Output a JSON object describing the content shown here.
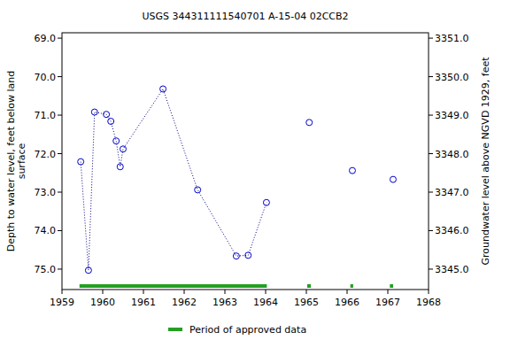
{
  "chart_data": {
    "type": "scatter",
    "title": "USGS 344311111540701 A-15-04 02CCB2",
    "y_label": [
      "Depth to water level, feet below land",
      "surface"
    ],
    "y2_label": "Groundwater level above NGVD 1929, feet",
    "xlim": [
      1959,
      1968
    ],
    "xticks": [
      1959,
      1960,
      1961,
      1962,
      1963,
      1964,
      1965,
      1966,
      1967,
      1968
    ],
    "ylim": [
      68.86,
      75.53
    ],
    "yticks": [
      {
        "value": 69,
        "label": "69.0"
      },
      {
        "value": 70,
        "label": "70.0"
      },
      {
        "value": 71,
        "label": "71.0"
      },
      {
        "value": 72,
        "label": "72.0"
      },
      {
        "value": 73,
        "label": "73.0"
      },
      {
        "value": 74,
        "label": "74.0"
      },
      {
        "value": 75,
        "label": "75.0"
      }
    ],
    "y2lim": [
      3351.14,
      3344.47
    ],
    "y2ticks": [
      {
        "value": 3351,
        "label": "3351.0"
      },
      {
        "value": 3350,
        "label": "3350.0"
      },
      {
        "value": 3349,
        "label": "3349.0"
      },
      {
        "value": 3348,
        "label": "3348.0"
      },
      {
        "value": 3347,
        "label": "3347.0"
      },
      {
        "value": 3346,
        "label": "3346.0"
      },
      {
        "value": 3345,
        "label": "3345.0"
      }
    ],
    "grid": false,
    "series": [
      {
        "color": "#0000cc",
        "marker": "circle",
        "line_style": "dotted",
        "x": [
          1959.46,
          1959.65,
          1959.8,
          1960.09,
          1960.2,
          1960.33,
          1960.43,
          1960.5,
          1961.48,
          1962.33,
          1963.28,
          1963.57,
          1964.02
        ],
        "values": [
          72.21,
          75.03,
          70.92,
          70.98,
          71.16,
          71.67,
          72.34,
          71.88,
          70.32,
          72.94,
          74.66,
          74.64,
          73.27
        ]
      },
      {
        "color": "#0000cc",
        "marker": "circle",
        "line_style": "none",
        "x": [
          1965.07,
          1966.13,
          1967.13
        ],
        "values": [
          71.19,
          72.44,
          72.67
        ]
      }
    ],
    "approved_periods": {
      "name": "Period of approved data",
      "color": "#22a022",
      "start": [
        1959.43,
        1965.02,
        1966.08,
        1967.05
      ],
      "end": [
        1964.03,
        1965.11,
        1966.15,
        1967.13
      ]
    },
    "legend": "bottom"
  }
}
